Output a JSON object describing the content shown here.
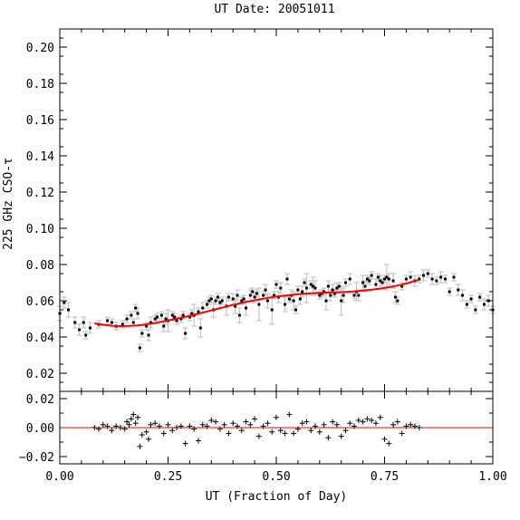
{
  "chart_data": [
    {
      "panel": "main",
      "type": "scatter",
      "title": "UT Date: 20051011",
      "ylabel": "225 GHz CSO-τ",
      "xlim": [
        0,
        1
      ],
      "ylim": [
        0.01,
        0.21
      ],
      "y_ticks": [
        "0.02",
        "0.04",
        "0.06",
        "0.08",
        "0.10",
        "0.12",
        "0.14",
        "0.16",
        "0.18",
        "0.20"
      ],
      "grid": false,
      "colors": {
        "points": "#000000",
        "errorbars": "#bbbbbb",
        "fit": "#ff0000"
      },
      "series": [
        {
          "kind": "points_with_errorbars",
          "x": [
            0.09,
            0.11,
            0.12,
            0.13,
            0.145,
            0.155,
            0.165,
            0.17,
            0.175,
            0.18,
            0.185,
            0.19,
            0.2,
            0.205,
            0.21,
            0.22,
            0.225,
            0.235,
            0.24,
            0.245,
            0.25,
            0.26,
            0.265,
            0.27,
            0.28,
            0.285,
            0.29,
            0.3,
            0.305,
            0.31,
            0.32,
            0.325,
            0.33,
            0.34,
            0.345,
            0.35,
            0.355,
            0.36,
            0.365,
            0.37,
            0.375,
            0.385,
            0.39,
            0.4,
            0.405,
            0.41,
            0.415,
            0.42,
            0.425,
            0.43,
            0.44,
            0.445,
            0.45,
            0.455,
            0.46,
            0.47,
            0.475,
            0.48,
            0.49,
            0.495,
            0.5,
            0.505,
            0.51,
            0.52,
            0.525,
            0.53,
            0.535,
            0.54,
            0.545,
            0.55,
            0.555,
            0.56,
            0.565,
            0.57,
            0.58,
            0.585,
            0.59,
            0.6,
            0.605,
            0.61,
            0.615,
            0.62,
            0.625,
            0.63,
            0.635,
            0.64,
            0.645,
            0.65,
            0.655,
            0.66,
            0.67,
            0.68,
            0.685,
            0.69,
            0.7,
            0.705,
            0.71,
            0.715,
            0.72,
            0.73,
            0.735,
            0.74,
            0.745,
            0.75,
            0.755,
            0.76,
            0.77,
            0.775,
            0.78,
            0.79,
            0.8,
            0.81,
            0.82,
            0.83
          ],
          "y": [
            0.047,
            0.049,
            0.048,
            0.046,
            0.047,
            0.05,
            0.052,
            0.048,
            0.056,
            0.053,
            0.034,
            0.042,
            0.046,
            0.041,
            0.048,
            0.05,
            0.051,
            0.052,
            0.046,
            0.05,
            0.049,
            0.052,
            0.051,
            0.049,
            0.05,
            0.052,
            0.042,
            0.051,
            0.053,
            0.052,
            0.054,
            0.045,
            0.056,
            0.058,
            0.06,
            0.061,
            0.055,
            0.06,
            0.062,
            0.059,
            0.06,
            0.057,
            0.062,
            0.061,
            0.057,
            0.063,
            0.052,
            0.06,
            0.061,
            0.056,
            0.063,
            0.065,
            0.062,
            0.064,
            0.058,
            0.063,
            0.066,
            0.06,
            0.055,
            0.063,
            0.069,
            0.062,
            0.067,
            0.058,
            0.072,
            0.061,
            0.063,
            0.06,
            0.055,
            0.066,
            0.061,
            0.065,
            0.07,
            0.067,
            0.069,
            0.068,
            0.067,
            0.063,
            0.064,
            0.065,
            0.06,
            0.068,
            0.063,
            0.066,
            0.064,
            0.067,
            0.068,
            0.06,
            0.063,
            0.07,
            0.072,
            0.063,
            0.065,
            0.063,
            0.07,
            0.068,
            0.072,
            0.071,
            0.074,
            0.069,
            0.073,
            0.071,
            0.07,
            0.072,
            0.073,
            0.072,
            0.071,
            0.062,
            0.06,
            0.068,
            0.072,
            0.073,
            0.071,
            0.072
          ],
          "yerr": [
            0.002,
            0.002,
            0.002,
            0.002,
            0.002,
            0.002,
            0.002,
            0.002,
            0.002,
            0.003,
            0.002,
            0.002,
            0.002,
            0.003,
            0.003,
            0.002,
            0.002,
            0.002,
            0.003,
            0.003,
            0.006,
            0.002,
            0.002,
            0.002,
            0.002,
            0.002,
            0.003,
            0.002,
            0.002,
            0.006,
            0.002,
            0.005,
            0.003,
            0.002,
            0.002,
            0.002,
            0.004,
            0.002,
            0.002,
            0.003,
            0.002,
            0.005,
            0.002,
            0.003,
            0.004,
            0.003,
            0.004,
            0.002,
            0.002,
            0.004,
            0.003,
            0.002,
            0.003,
            0.002,
            0.009,
            0.002,
            0.003,
            0.004,
            0.008,
            0.002,
            0.002,
            0.003,
            0.003,
            0.004,
            0.003,
            0.002,
            0.003,
            0.005,
            0.002,
            0.002,
            0.003,
            0.003,
            0.002,
            0.008,
            0.002,
            0.005,
            0.004,
            0.002,
            0.002,
            0.002,
            0.005,
            0.003,
            0.003,
            0.003,
            0.002,
            0.003,
            0.002,
            0.008,
            0.004,
            0.002,
            0.003,
            0.002,
            0.005,
            0.003,
            0.004,
            0.003,
            0.002,
            0.002,
            0.002,
            0.003,
            0.002,
            0.003,
            0.002,
            0.002,
            0.007,
            0.003,
            0.004,
            0.003,
            0.002,
            0.002,
            0.002,
            0.003,
            0.003,
            0.002
          ]
        },
        {
          "kind": "points",
          "x": [
            0.0,
            0.01,
            0.02,
            0.035,
            0.045,
            0.055,
            0.06,
            0.07,
            0.84,
            0.85,
            0.86,
            0.87,
            0.88,
            0.89,
            0.9,
            0.91,
            0.92,
            0.93,
            0.94,
            0.95,
            0.96,
            0.97,
            0.98,
            0.99,
            1.0
          ],
          "y": [
            0.053,
            0.059,
            0.055,
            0.048,
            0.044,
            0.048,
            0.041,
            0.045,
            0.074,
            0.075,
            0.072,
            0.071,
            0.073,
            0.072,
            0.065,
            0.073,
            0.066,
            0.063,
            0.058,
            0.061,
            0.055,
            0.062,
            0.058,
            0.06,
            0.055
          ],
          "yerr": [
            0.004,
            0.003,
            0.004,
            0.003,
            0.003,
            0.003,
            0.002,
            0.003,
            0.003,
            0.002,
            0.003,
            0.002,
            0.003,
            0.002,
            0.002,
            0.002,
            0.003,
            0.003,
            0.002,
            0.002,
            0.002,
            0.002,
            0.003,
            0.003,
            0.002
          ]
        },
        {
          "kind": "fit_line",
          "x": [
            0.08,
            0.1,
            0.12,
            0.14,
            0.16,
            0.18,
            0.2,
            0.22,
            0.24,
            0.26,
            0.28,
            0.3,
            0.32,
            0.34,
            0.36,
            0.38,
            0.4,
            0.42,
            0.44,
            0.46,
            0.48,
            0.5,
            0.52,
            0.54,
            0.56,
            0.58,
            0.6,
            0.62,
            0.64,
            0.66,
            0.68,
            0.7,
            0.72,
            0.74,
            0.76,
            0.78,
            0.8,
            0.82,
            0.83
          ],
          "y": [
            0.0475,
            0.0468,
            0.0462,
            0.046,
            0.0461,
            0.0464,
            0.047,
            0.0477,
            0.0486,
            0.0496,
            0.0506,
            0.0517,
            0.0529,
            0.0541,
            0.0553,
            0.0565,
            0.0577,
            0.0588,
            0.0598,
            0.0607,
            0.0616,
            0.0623,
            0.0629,
            0.0634,
            0.0638,
            0.0641,
            0.0643,
            0.0645,
            0.0647,
            0.0649,
            0.0652,
            0.0656,
            0.0661,
            0.0667,
            0.0675,
            0.0684,
            0.0695,
            0.0709,
            0.0716
          ]
        }
      ]
    },
    {
      "panel": "residuals",
      "type": "scatter",
      "xlabel": "UT (Fraction of Day)",
      "xlim": [
        0,
        1
      ],
      "ylim": [
        -0.025,
        0.025
      ],
      "x_ticks": [
        "0.00",
        "0.25",
        "0.50",
        "0.75",
        "1.00"
      ],
      "y_ticks": [
        "−0.02",
        "0.00",
        "0.02"
      ],
      "grid": false,
      "colors": {
        "points": "#000000",
        "zero_line": "#ff0000"
      },
      "series": [
        {
          "kind": "residual_points",
          "x": [
            0.08,
            0.09,
            0.1,
            0.11,
            0.12,
            0.13,
            0.14,
            0.15,
            0.155,
            0.16,
            0.165,
            0.17,
            0.175,
            0.18,
            0.185,
            0.19,
            0.2,
            0.205,
            0.21,
            0.22,
            0.23,
            0.24,
            0.25,
            0.26,
            0.27,
            0.28,
            0.29,
            0.3,
            0.31,
            0.32,
            0.33,
            0.34,
            0.35,
            0.36,
            0.37,
            0.38,
            0.39,
            0.4,
            0.41,
            0.42,
            0.43,
            0.44,
            0.45,
            0.46,
            0.47,
            0.48,
            0.49,
            0.5,
            0.51,
            0.52,
            0.53,
            0.54,
            0.55,
            0.56,
            0.57,
            0.58,
            0.59,
            0.6,
            0.61,
            0.62,
            0.63,
            0.64,
            0.65,
            0.66,
            0.67,
            0.68,
            0.69,
            0.7,
            0.71,
            0.72,
            0.73,
            0.74,
            0.75,
            0.76,
            0.77,
            0.78,
            0.79,
            0.8,
            0.81,
            0.82,
            0.83
          ],
          "y": [
            0.0,
            -0.001,
            0.002,
            0.001,
            -0.002,
            0.001,
            0.0,
            -0.001,
            0.004,
            0.002,
            0.006,
            0.009,
            0.003,
            0.007,
            -0.013,
            -0.005,
            -0.003,
            -0.008,
            0.002,
            0.003,
            0.001,
            -0.004,
            0.002,
            -0.002,
            0.0,
            0.001,
            -0.011,
            0.001,
            -0.001,
            -0.009,
            0.002,
            0.001,
            0.005,
            0.004,
            -0.001,
            0.002,
            -0.004,
            0.003,
            0.001,
            -0.002,
            0.004,
            0.002,
            0.006,
            -0.006,
            0.001,
            0.003,
            -0.003,
            0.007,
            -0.002,
            -0.004,
            0.009,
            -0.004,
            -0.001,
            0.003,
            0.004,
            -0.002,
            0.001,
            -0.003,
            0.002,
            -0.007,
            0.004,
            0.002,
            -0.006,
            -0.002,
            0.003,
            0.001,
            0.005,
            0.004,
            0.006,
            0.005,
            0.003,
            0.007,
            -0.008,
            -0.011,
            0.002,
            0.004,
            -0.004,
            0.001,
            0.002,
            0.001,
            0.0
          ]
        }
      ]
    }
  ]
}
